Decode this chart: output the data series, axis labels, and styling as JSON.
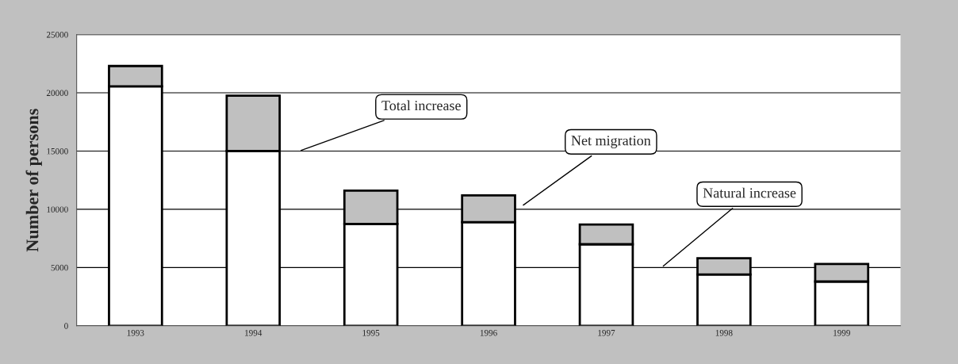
{
  "chart_data": {
    "type": "bar",
    "stacked": true,
    "ylabel": "Number of persons",
    "categories": [
      "1993",
      "1994",
      "1995",
      "1996",
      "1997",
      "1998",
      "1999"
    ],
    "series": [
      {
        "color": "#ffffff",
        "values": [
          20550,
          15000,
          8750,
          8900,
          7000,
          4400,
          3800
        ]
      },
      {
        "color": "#c0c0c0",
        "values": [
          1750,
          4750,
          2850,
          2300,
          1700,
          1400,
          1500
        ]
      }
    ],
    "ylim": [
      0,
      25000
    ],
    "yticks": [
      0,
      5000,
      10000,
      15000,
      20000,
      25000
    ],
    "grid": "y",
    "legend": false,
    "annotations": [
      "Total increase",
      "Net migration",
      "Natural increase"
    ]
  }
}
